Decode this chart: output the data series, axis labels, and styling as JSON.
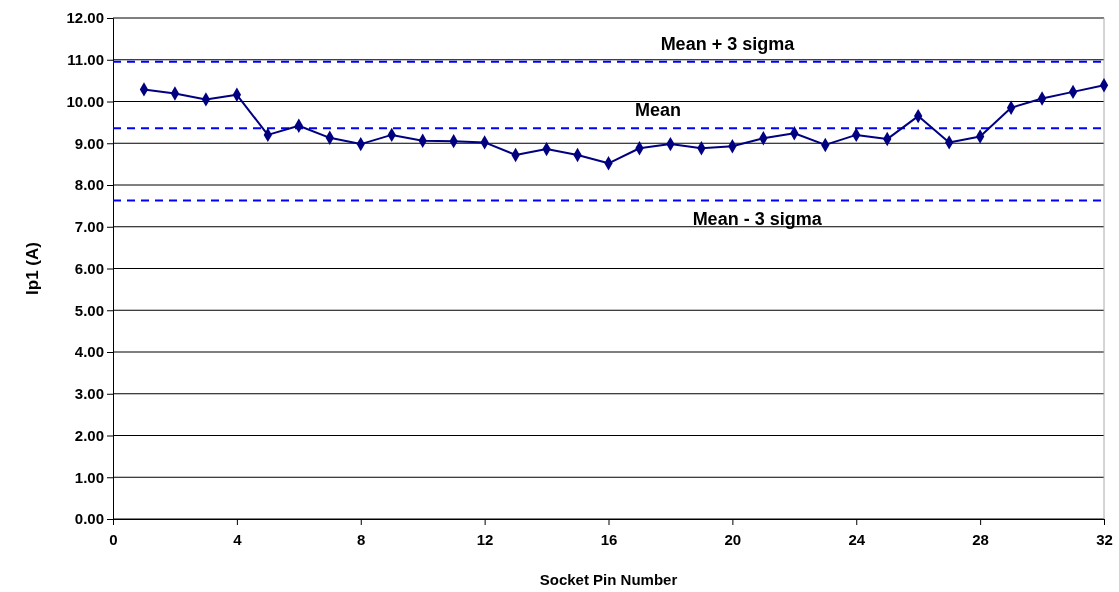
{
  "chart_data": {
    "type": "line",
    "xlabel": "Socket Pin Number",
    "ylabel": "Ip1 (A)",
    "x": [
      1,
      2,
      3,
      4,
      5,
      6,
      7,
      8,
      9,
      10,
      11,
      12,
      13,
      14,
      15,
      16,
      17,
      18,
      19,
      20,
      21,
      22,
      23,
      24,
      25,
      26,
      27,
      28,
      29,
      30,
      31,
      32
    ],
    "series": [
      {
        "color": "#000080",
        "values": [
          10.29,
          10.19,
          10.05,
          10.16,
          9.2,
          9.42,
          9.13,
          8.98,
          9.2,
          9.06,
          9.05,
          9.02,
          8.72,
          8.86,
          8.72,
          8.52,
          8.88,
          8.98,
          8.88,
          8.93,
          9.12,
          9.24,
          8.96,
          9.2,
          9.1,
          9.65,
          9.02,
          9.16,
          9.85,
          10.07,
          10.23,
          10.39
        ]
      }
    ],
    "xlim": [
      0,
      32
    ],
    "xticks": [
      0,
      4,
      8,
      12,
      16,
      20,
      24,
      28,
      32
    ],
    "ylim": [
      0,
      12
    ],
    "yticks": [
      {
        "value": 0,
        "label": "0.00"
      },
      {
        "value": 1,
        "label": "1.00"
      },
      {
        "value": 2,
        "label": "2.00"
      },
      {
        "value": 3,
        "label": "3.00"
      },
      {
        "value": 4,
        "label": "4.00"
      },
      {
        "value": 5,
        "label": "5.00"
      },
      {
        "value": 6,
        "label": "6.00"
      },
      {
        "value": 7,
        "label": "7.00"
      },
      {
        "value": 8,
        "label": "8.00"
      },
      {
        "value": 9,
        "label": "9.00"
      },
      {
        "value": 10,
        "label": "10.00"
      },
      {
        "value": 11,
        "label": "11.00"
      },
      {
        "value": 12,
        "label": "12.00"
      }
    ],
    "grid": "y",
    "marker": "diamond",
    "line_style": "solid",
    "ref_lines": [
      {
        "axis": "y",
        "value": 10.95,
        "label": "Mean + 3 sigma",
        "color": "#0000ff",
        "line_style": "dashed"
      },
      {
        "axis": "y",
        "value": 9.36,
        "label": "Mean",
        "color": "#0000ff",
        "line_style": "dashed"
      },
      {
        "axis": "y",
        "value": 7.63,
        "label": "Mean - 3 sigma",
        "color": "#0000ff",
        "line_style": "dashed"
      }
    ]
  }
}
